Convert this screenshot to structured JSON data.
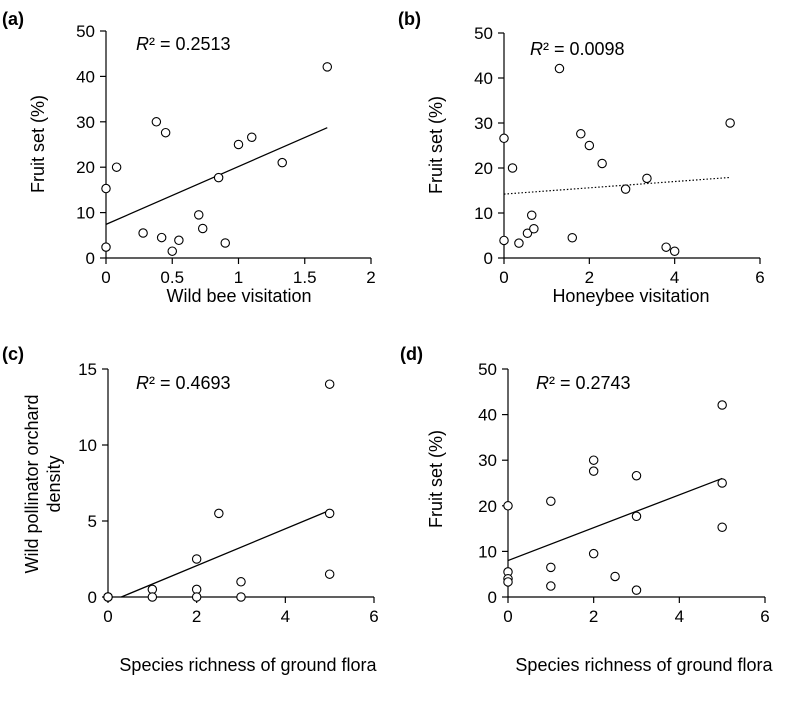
{
  "chart_data": [
    {
      "type": "scatter",
      "panel_label": "(a)",
      "r2_symbol": "R",
      "r2_rest": "² = 0.2513",
      "xlabel": "Wild bee visitation",
      "ylabel": "Fruit set (%)",
      "xlim": [
        0,
        2
      ],
      "ylim": [
        0,
        50
      ],
      "xticks": [
        0,
        0.5,
        1,
        1.5,
        2
      ],
      "xtick_labels": [
        "0",
        "0.5",
        "1",
        "1.5",
        "2"
      ],
      "yticks": [
        0,
        10,
        20,
        30,
        40,
        50
      ],
      "ytick_labels": [
        "0",
        "10",
        "20",
        "30",
        "40",
        "50"
      ],
      "points": [
        [
          0.0,
          15.3
        ],
        [
          0.0,
          2.4
        ],
        [
          0.08,
          20.0
        ],
        [
          0.28,
          5.5
        ],
        [
          0.38,
          30.0
        ],
        [
          0.42,
          4.5
        ],
        [
          0.45,
          27.6
        ],
        [
          0.5,
          1.5
        ],
        [
          0.55,
          3.9
        ],
        [
          0.7,
          9.5
        ],
        [
          0.73,
          6.5
        ],
        [
          0.85,
          17.7
        ],
        [
          0.9,
          3.3
        ],
        [
          1.0,
          25.0
        ],
        [
          1.1,
          26.6
        ],
        [
          1.33,
          21.0
        ],
        [
          1.67,
          42.1
        ]
      ],
      "trendline": {
        "style": "solid",
        "x": [
          0,
          1.67
        ],
        "y": [
          7.4,
          28.7
        ]
      }
    },
    {
      "type": "scatter",
      "panel_label": "(b)",
      "r2_symbol": "R",
      "r2_rest": "² = 0.0098",
      "xlabel": "Honeybee visitation",
      "ylabel": "Fruit set (%)",
      "xlim": [
        0,
        6
      ],
      "ylim": [
        0,
        50
      ],
      "xticks": [
        0,
        2,
        4,
        6
      ],
      "xtick_labels": [
        "0",
        "2",
        "4",
        "6"
      ],
      "yticks": [
        0,
        10,
        20,
        30,
        40,
        50
      ],
      "ytick_labels": [
        "0",
        "10",
        "20",
        "30",
        "40",
        "50"
      ],
      "points": [
        [
          0.0,
          26.6
        ],
        [
          0.0,
          3.9
        ],
        [
          0.2,
          20.0
        ],
        [
          0.35,
          3.3
        ],
        [
          0.55,
          5.5
        ],
        [
          0.65,
          9.5
        ],
        [
          0.7,
          6.5
        ],
        [
          1.3,
          42.1
        ],
        [
          1.6,
          4.5
        ],
        [
          1.8,
          27.6
        ],
        [
          2.0,
          25.0
        ],
        [
          2.3,
          21.0
        ],
        [
          2.85,
          15.3
        ],
        [
          3.35,
          17.7
        ],
        [
          3.8,
          2.4
        ],
        [
          4.0,
          1.5
        ],
        [
          5.3,
          30.0
        ]
      ],
      "trendline": {
        "style": "dotted",
        "x": [
          0,
          5.3
        ],
        "y": [
          14.2,
          17.9
        ]
      }
    },
    {
      "type": "scatter",
      "panel_label": "(c)",
      "r2_symbol": "R",
      "r2_rest": "² = 0.4693",
      "xlabel": "Species richness of ground flora",
      "ylabel_lines": [
        "Wild pollinator orchard",
        "density"
      ],
      "xlim": [
        0,
        6
      ],
      "ylim": [
        0,
        15
      ],
      "xticks": [
        0,
        2,
        4,
        6
      ],
      "xtick_labels": [
        "0",
        "2",
        "4",
        "6"
      ],
      "yticks": [
        0,
        5,
        10,
        15
      ],
      "ytick_labels": [
        "0",
        "5",
        "10",
        "15"
      ],
      "points": [
        [
          0,
          0
        ],
        [
          0,
          0
        ],
        [
          0,
          0
        ],
        [
          0,
          0
        ],
        [
          1,
          0.5
        ],
        [
          1,
          0
        ],
        [
          2,
          2.5
        ],
        [
          2,
          0.5
        ],
        [
          2,
          0
        ],
        [
          2.5,
          5.5
        ],
        [
          3,
          1.0
        ],
        [
          3,
          0
        ],
        [
          5,
          14.0
        ],
        [
          5,
          5.5
        ],
        [
          5,
          1.5
        ]
      ],
      "trendline": {
        "style": "solid",
        "x": [
          0.3,
          5
        ],
        "y": [
          0,
          5.7
        ]
      }
    },
    {
      "type": "scatter",
      "panel_label": "(d)",
      "r2_symbol": "R",
      "r2_rest": "² = 0.2743",
      "xlabel": "Species richness of ground flora",
      "ylabel": "Fruit set (%)",
      "xlim": [
        0,
        6
      ],
      "ylim": [
        0,
        50
      ],
      "xticks": [
        0,
        2,
        4,
        6
      ],
      "xtick_labels": [
        "0",
        "2",
        "4",
        "6"
      ],
      "yticks": [
        0,
        10,
        20,
        30,
        40,
        50
      ],
      "ytick_labels": [
        "0",
        "10",
        "20",
        "30",
        "40",
        "50"
      ],
      "points": [
        [
          0,
          20.0
        ],
        [
          0,
          5.5
        ],
        [
          0,
          4.0
        ],
        [
          0,
          3.3
        ],
        [
          1,
          21.0
        ],
        [
          1,
          6.5
        ],
        [
          1,
          2.4
        ],
        [
          2,
          30.0
        ],
        [
          2,
          27.6
        ],
        [
          2,
          9.5
        ],
        [
          2.5,
          4.5
        ],
        [
          3,
          26.6
        ],
        [
          3,
          17.7
        ],
        [
          3,
          1.5
        ],
        [
          5,
          42.1
        ],
        [
          5,
          25.0
        ],
        [
          5,
          15.3
        ]
      ],
      "trendline": {
        "style": "solid",
        "x": [
          0,
          5
        ],
        "y": [
          8.0,
          26.0
        ]
      }
    }
  ]
}
